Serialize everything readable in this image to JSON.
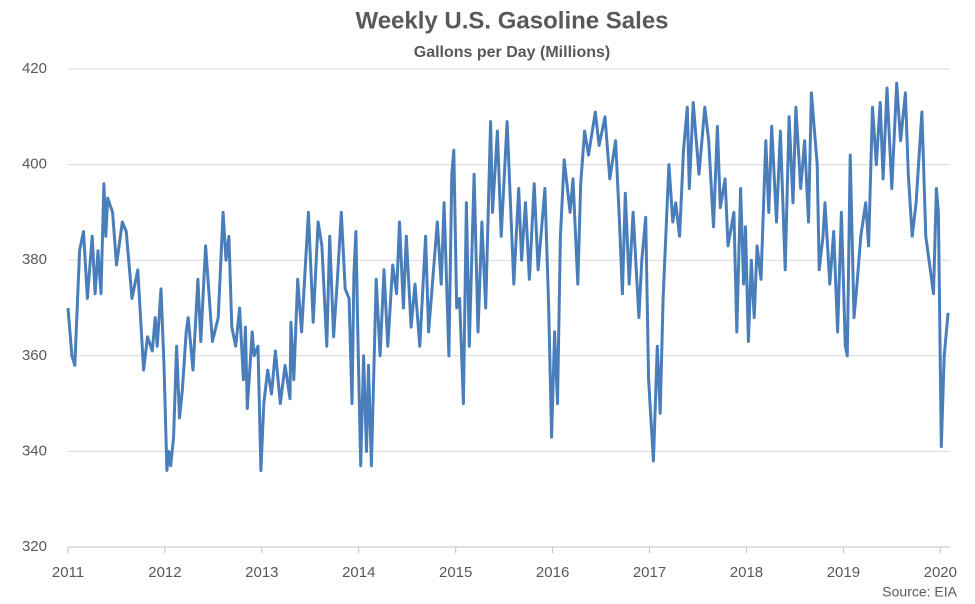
{
  "chart_data": {
    "type": "line",
    "title": "Weekly U.S. Gasoline Sales",
    "subtitle": "Gallons per Day (Millions)",
    "source": "Source: EIA",
    "color": "#4a7ebb",
    "grid": true,
    "xlim": [
      2011,
      2020.1
    ],
    "xticks": [
      2011,
      2012,
      2013,
      2014,
      2015,
      2016,
      2017,
      2018,
      2019,
      2020
    ],
    "ylim": [
      320,
      420
    ],
    "yticks": [
      320,
      340,
      360,
      380,
      400,
      420
    ],
    "x": [
      2011.0,
      2011.04,
      2011.07,
      2011.12,
      2011.16,
      2011.2,
      2011.25,
      2011.28,
      2011.31,
      2011.34,
      2011.37,
      2011.39,
      2011.41,
      2011.46,
      2011.5,
      2011.56,
      2011.6,
      2011.66,
      2011.72,
      2011.78,
      2011.82,
      2011.87,
      2011.9,
      2011.92,
      2011.96,
      2011.99,
      2012.02,
      2012.04,
      2012.06,
      2012.09,
      2012.12,
      2012.15,
      2012.18,
      2012.22,
      2012.24,
      2012.29,
      2012.34,
      2012.37,
      2012.42,
      2012.49,
      2012.55,
      2012.6,
      2012.63,
      2012.66,
      2012.69,
      2012.73,
      2012.77,
      2012.81,
      2012.83,
      2012.85,
      2012.9,
      2012.92,
      2012.96,
      2012.99,
      2013.02,
      2013.06,
      2013.1,
      2013.14,
      2013.19,
      2013.24,
      2013.29,
      2013.3,
      2013.33,
      2013.37,
      2013.41,
      2013.48,
      2013.53,
      2013.58,
      2013.62,
      2013.67,
      2013.7,
      2013.74,
      2013.78,
      2013.82,
      2013.86,
      2013.9,
      2013.93,
      2013.95,
      2013.97,
      2013.99,
      2014.02,
      2014.05,
      2014.08,
      2014.1,
      2014.13,
      2014.18,
      2014.22,
      2014.26,
      2014.3,
      2014.35,
      2014.39,
      2014.42,
      2014.46,
      2014.49,
      2014.54,
      2014.58,
      2014.63,
      2014.69,
      2014.72,
      2014.74,
      2014.81,
      2014.85,
      2014.88,
      2014.93,
      2014.96,
      2014.98,
      2015.01,
      2015.04,
      2015.08,
      2015.11,
      2015.14,
      2015.19,
      2015.23,
      2015.27,
      2015.31,
      2015.36,
      2015.38,
      2015.43,
      2015.47,
      2015.53,
      2015.6,
      2015.65,
      2015.68,
      2015.72,
      2015.76,
      2015.81,
      2015.85,
      2015.92,
      2015.96,
      2015.99,
      2016.02,
      2016.05,
      2016.08,
      2016.12,
      2016.18,
      2016.21,
      2016.26,
      2016.29,
      2016.33,
      2016.37,
      2016.44,
      2016.48,
      2016.54,
      2016.59,
      2016.65,
      2016.69,
      2016.72,
      2016.75,
      2016.79,
      2016.83,
      2016.89,
      2016.92,
      2016.96,
      2016.99,
      2017.04,
      2017.08,
      2017.11,
      2017.14,
      2017.2,
      2017.24,
      2017.27,
      2017.31,
      2017.35,
      2017.39,
      2017.41,
      2017.45,
      2017.51,
      2017.57,
      2017.61,
      2017.66,
      2017.7,
      2017.73,
      2017.78,
      2017.81,
      2017.87,
      2017.9,
      2017.94,
      2017.97,
      2017.99,
      2018.02,
      2018.05,
      2018.08,
      2018.11,
      2018.15,
      2018.2,
      2018.23,
      2018.26,
      2018.31,
      2018.35,
      2018.4,
      2018.44,
      2018.48,
      2018.51,
      2018.56,
      2018.6,
      2018.64,
      2018.67,
      2018.73,
      2018.75,
      2018.79,
      2018.81,
      2018.86,
      2018.9,
      2018.94,
      2018.98,
      2019.02,
      2019.04,
      2019.07,
      2019.11,
      2019.14,
      2019.18,
      2019.23,
      2019.26,
      2019.3,
      2019.34,
      2019.38,
      2019.41,
      2019.45,
      2019.5,
      2019.55,
      2019.59,
      2019.64,
      2019.67,
      2019.71,
      2019.75,
      2019.81,
      2019.85,
      2019.93,
      2019.96,
      2019.98,
      2020.01,
      2020.04,
      2020.08
    ],
    "values": [
      370,
      360,
      358,
      382,
      386,
      372,
      385,
      373,
      382,
      373,
      396,
      385,
      393,
      390,
      379,
      388,
      386,
      372,
      378,
      357,
      364,
      361,
      368,
      362,
      374,
      358,
      336,
      340,
      337,
      343,
      362,
      347,
      353,
      365,
      368,
      357,
      376,
      363,
      383,
      363,
      368,
      390,
      380,
      385,
      366,
      362,
      370,
      355,
      366,
      349,
      365,
      360,
      362,
      336,
      350,
      357,
      352,
      361,
      350,
      358,
      351,
      367,
      355,
      376,
      365,
      390,
      367,
      388,
      383,
      362,
      385,
      364,
      376,
      390,
      374,
      372,
      350,
      377,
      386,
      365,
      337,
      360,
      340,
      358,
      337,
      376,
      360,
      378,
      362,
      379,
      373,
      388,
      370,
      385,
      366,
      375,
      362,
      385,
      365,
      370,
      388,
      375,
      392,
      360,
      398,
      403,
      370,
      372,
      350,
      392,
      362,
      398,
      365,
      388,
      370,
      409,
      390,
      407,
      385,
      409,
      375,
      395,
      380,
      392,
      376,
      396,
      378,
      395,
      370,
      343,
      365,
      350,
      385,
      401,
      390,
      397,
      375,
      396,
      407,
      402,
      411,
      404,
      410,
      397,
      405,
      388,
      373,
      394,
      375,
      390,
      368,
      380,
      389,
      355,
      338,
      362,
      348,
      372,
      400,
      388,
      392,
      385,
      403,
      412,
      395,
      413,
      398,
      412,
      405,
      387,
      408,
      391,
      397,
      383,
      390,
      365,
      395,
      375,
      387,
      363,
      380,
      368,
      383,
      376,
      405,
      390,
      408,
      388,
      407,
      378,
      410,
      392,
      412,
      395,
      405,
      388,
      415,
      400,
      378,
      385,
      392,
      375,
      386,
      365,
      390,
      362,
      360,
      402,
      368,
      375,
      385,
      392,
      383,
      412,
      400,
      413,
      397,
      416,
      395,
      417,
      405,
      415,
      398,
      385,
      392,
      411,
      385,
      373,
      395,
      390,
      341,
      360,
      369
    ]
  }
}
